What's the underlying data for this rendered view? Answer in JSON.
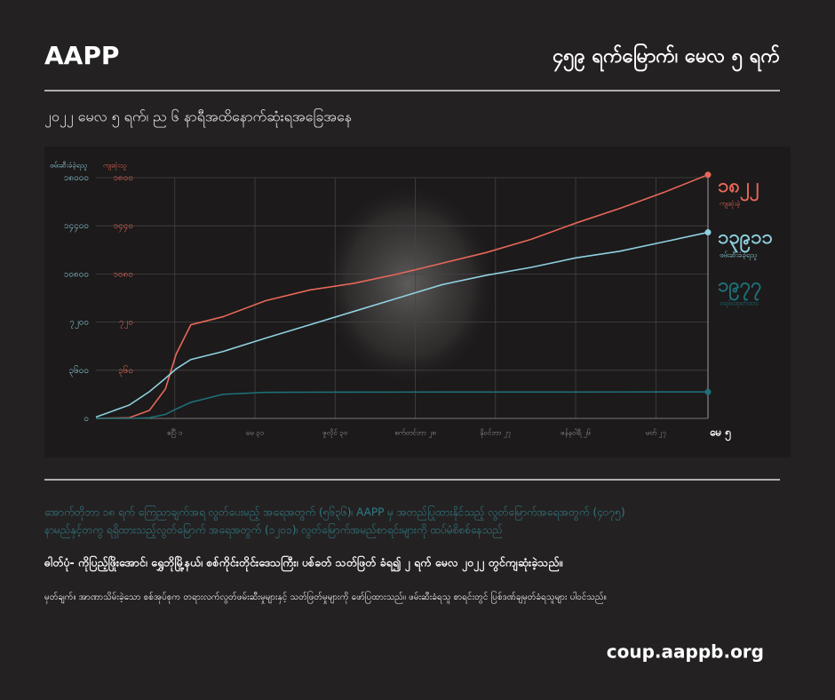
{
  "header": {
    "brand": "AAPP",
    "title": "၄၅၉ ရက်မြောက်၊ မေလ ၅ ရက်"
  },
  "chart_data": {
    "type": "line",
    "subtitle": "၂၀၂၂ မေလ ၅ ရက်၊ ည ၆ နာရီအထိနောက်ဆုံးရအခြေအနေ",
    "ylabel": "ဖမ်းဆီးခံခဲ့ရသူ",
    "y2label": "ကျဆုံးသူ",
    "x": [
      0,
      25,
      40,
      52,
      60,
      71,
      95,
      127,
      160,
      193,
      226,
      259,
      292,
      326,
      359,
      392,
      425,
      458
    ],
    "xlim": [
      0,
      458
    ],
    "xticks": [
      {
        "value": 59,
        "label": "ဧပြီ ၁"
      },
      {
        "value": 119,
        "label": "မေ ၃၁"
      },
      {
        "value": 179,
        "label": "ဇူလိုင် ၃၀"
      },
      {
        "value": 239,
        "label": "စက်တင်ဘာ ၂၈"
      },
      {
        "value": 299,
        "label": "နိုဝင်ဘာ ၂၇"
      },
      {
        "value": 359,
        "label": "ဇန်နဝါရီ ၂၆"
      },
      {
        "value": 419,
        "label": "မတ် ၂၇"
      },
      {
        "value": 458,
        "label": "မေ ၅"
      }
    ],
    "ylim": [
      0,
      18000
    ],
    "yticks": [
      {
        "value": 0,
        "label": "၀"
      },
      {
        "value": 3600,
        "label": "၃၆၀၀"
      },
      {
        "value": 7200,
        "label": "၇၂၀၀"
      },
      {
        "value": 10800,
        "label": "၁၀၈၀၀"
      },
      {
        "value": 14400,
        "label": "၁၄၄၀၀"
      },
      {
        "value": 18000,
        "label": "၁၈၀၀၀"
      }
    ],
    "y2lim": [
      0,
      1800
    ],
    "y2ticks": [
      {
        "value": 360,
        "label": "၃၆၀"
      },
      {
        "value": 720,
        "label": "၇၂၀"
      },
      {
        "value": 1080,
        "label": "၁၀၈၀"
      },
      {
        "value": 1440,
        "label": "၁၄၄၀"
      },
      {
        "value": 1800,
        "label": "၁၈၀၀"
      }
    ],
    "grid": true,
    "series": [
      {
        "name": "ကျဆုံးခဲ့",
        "color": "#e8675a",
        "axis": "y2",
        "values": [
          0,
          5,
          60,
          220,
          480,
          700,
          760,
          880,
          960,
          1010,
          1080,
          1160,
          1240,
          1340,
          1460,
          1570,
          1690,
          1822
        ],
        "value_labels": [
          null,
          null,
          null,
          null,
          null,
          null,
          null,
          null,
          null,
          null,
          null,
          null,
          null,
          null,
          null,
          null,
          null,
          "၁၈၂၂"
        ]
      },
      {
        "name": "ဖမ်းဆီးခံခဲ့ရသူ",
        "color": "#8fd0e0",
        "values": [
          100,
          1000,
          2000,
          3000,
          3700,
          4400,
          5000,
          6000,
          7000,
          8000,
          9000,
          10000,
          10700,
          11300,
          12000,
          12500,
          13200,
          13911
        ],
        "value_labels": [
          null,
          null,
          null,
          null,
          null,
          null,
          null,
          null,
          null,
          null,
          null,
          null,
          null,
          null,
          null,
          null,
          null,
          "၁၃၉၁၁"
        ]
      },
      {
        "name": "ဝရမ်းထုတ်ထား",
        "color": "#1f6f78",
        "values": [
          0,
          0,
          50,
          300,
          700,
          1200,
          1800,
          1950,
          1960,
          1965,
          1968,
          1970,
          1972,
          1974,
          1975,
          1976,
          1977,
          1977
        ],
        "value_labels": [
          null,
          null,
          null,
          null,
          null,
          null,
          null,
          null,
          null,
          null,
          null,
          null,
          null,
          null,
          null,
          null,
          null,
          "၁၉၇၇"
        ]
      }
    ]
  },
  "notes": {
    "lines": [
      "အောက်တိုဘာ ၁၈ ရက် ကြေညာချက်အရ လွတ်ပေးမည့် အရေအတွက် (၅၆၃၆)၊ AAPP မှ အတည်ပြုထားနိုင်သည့် လွတ်မြောက်အရေအတွက် (၄၀၇၅)",
      "နာမည်နှင့်တကွ ရရှိထားသည့်လွတ်မြောက် အရေအတွက် (၁၂၀၁)၊ လွတ်မြောက်အမည်စာရင်းများကို ထပ်မံစိစစ်နေသည်"
    ],
    "photo": "ဓါတ်ပုံ- ကိုပြည့်ဖြိုးအောင်၊ ရွှေဘိုမြို့နယ်၊ စစ်ကိုင်းတိုင်းဒေသကြီး၊ ပစ်ခတ် သတ်ဖြတ် ခံရ၍ ၂ ရက် မေလ ၂၀၂၂ တွင်ကျဆုံးခဲ့သည်။",
    "remark": "မှတ်ချက်။ အာဏာသိမ်းခဲ့သော စစ်အုပ်စုက တရားလက်လွတ်ဖမ်းဆီးမှုများနှင့် သတ်ဖြတ်မှုများကို ဖော်ပြထားသည်။ ဖမ်းဆီးခံရသူ စာရင်းတွင် ပြစ်ဒဏ်ချမှတ်ခံရသူများ ပါဝင်သည်။",
    "url": "coup.aappb.org"
  }
}
